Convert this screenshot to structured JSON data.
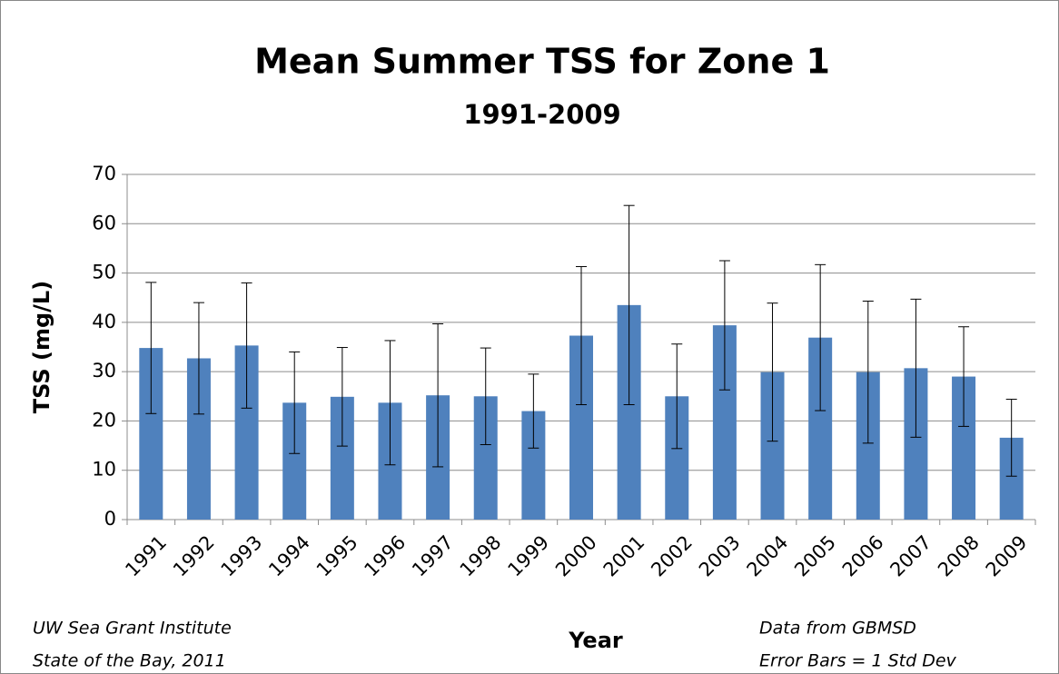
{
  "chart_data": {
    "type": "bar",
    "title": "Mean Summer TSS for Zone 1",
    "subtitle": "1991-2009",
    "x_label": "Year",
    "y_label": "TSS (mg/L)",
    "categories": [
      "1991",
      "1992",
      "1993",
      "1994",
      "1995",
      "1996",
      "1997",
      "1998",
      "1999",
      "2000",
      "2001",
      "2002",
      "2003",
      "2004",
      "2005",
      "2006",
      "2007",
      "2008",
      "2009"
    ],
    "values": [
      34.8,
      32.7,
      35.3,
      23.7,
      24.9,
      23.7,
      25.2,
      25.0,
      22.0,
      37.3,
      43.5,
      25.0,
      39.4,
      29.9,
      36.9,
      29.9,
      30.7,
      29.0,
      16.6
    ],
    "errors": [
      13.3,
      11.3,
      12.7,
      10.3,
      10.0,
      12.6,
      14.5,
      9.8,
      7.5,
      14.0,
      20.2,
      10.6,
      13.1,
      14.0,
      14.8,
      14.4,
      14.0,
      10.1,
      7.8
    ],
    "color": "#4f81bd",
    "ylim": [
      0,
      70
    ],
    "yticks": [
      0,
      10,
      20,
      30,
      40,
      50,
      60,
      70
    ],
    "grid": true,
    "annotations": [
      "UW  Sea Grant Institute",
      "State of the Bay, 2011",
      "Data from GBMSD",
      "Error Bars = 1 Std Dev"
    ]
  }
}
